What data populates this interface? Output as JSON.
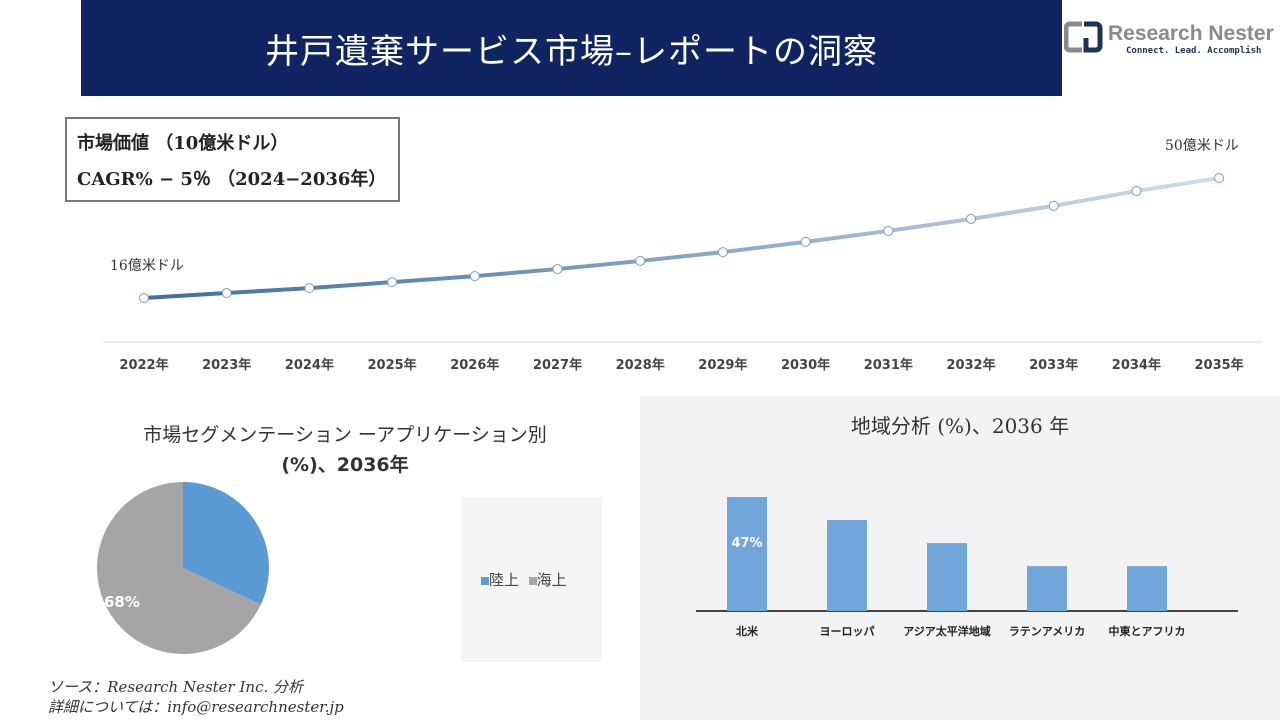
{
  "header": {
    "title": "井戸遺棄サービス市場–レポートの洞察"
  },
  "logo": {
    "name": "Research Nester",
    "tagline": "Connect. Lead. Accomplish"
  },
  "kpi": {
    "line1": "市場価値 （10億米ドル）",
    "line2": "CAGR% − 5％ （2024−2036年）"
  },
  "colors": {
    "header_bg": "#0f2461",
    "line_start": "#3f6e9a",
    "line_end": "#cfdcec",
    "pie_land": "#5b9bd5",
    "pie_sea": "#a5a5a5",
    "bar": "#70a6da"
  },
  "chart_data": [
    {
      "type": "line",
      "categories": [
        "2022年",
        "2023年",
        "2024年",
        "2025年",
        "2026年",
        "2027年",
        "2028年",
        "2029年",
        "2030年",
        "2031年",
        "2032年",
        "2033年",
        "2034年",
        "2035年"
      ],
      "values": [
        16,
        17.4,
        18.8,
        20.5,
        22.2,
        24.2,
        26.5,
        29.0,
        31.9,
        35.0,
        38.4,
        42.1,
        46.3,
        50
      ],
      "annotations": {
        "start": "16億米ドル",
        "end": "50億米ドル"
      },
      "grid": false
    },
    {
      "type": "pie",
      "title": "市場セグメンテーション ーアプリケーション別",
      "subtitle": "(%)、2036年",
      "series": [
        {
          "name": "陸上",
          "value": 32
        },
        {
          "name": "海上",
          "value": 68
        }
      ],
      "data_labels": {
        "海上": "68%"
      },
      "legend": "right"
    },
    {
      "type": "bar",
      "title": "地域分析 (%)、2036 年",
      "categories": [
        "北米",
        "ヨーロッパ",
        "アジア太平洋地域",
        "ラテンアメリカ",
        "中東とアフリカ"
      ],
      "values": [
        47,
        37.5,
        28,
        18.5,
        18.5
      ],
      "data_labels": {
        "北米": "47%"
      }
    }
  ],
  "source": {
    "line1": "ソース：Research Nester Inc. 分析",
    "line2": "詳細については：info@researchnester.jp"
  }
}
